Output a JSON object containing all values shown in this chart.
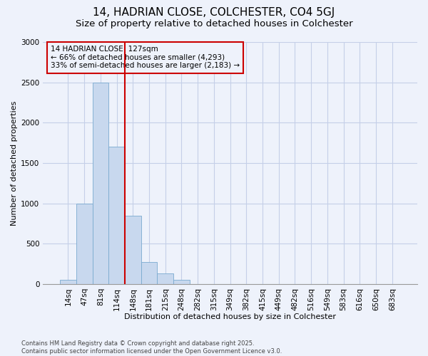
{
  "title_line1": "14, HADRIAN CLOSE, COLCHESTER, CO4 5GJ",
  "title_line2": "Size of property relative to detached houses in Colchester",
  "xlabel": "Distribution of detached houses by size in Colchester",
  "ylabel": "Number of detached properties",
  "categories": [
    "14sq",
    "47sq",
    "81sq",
    "114sq",
    "148sq",
    "181sq",
    "215sq",
    "248sq",
    "282sq",
    "315sq",
    "349sq",
    "382sq",
    "415sq",
    "449sq",
    "482sq",
    "516sq",
    "549sq",
    "583sq",
    "616sq",
    "650sq",
    "683sq"
  ],
  "values": [
    50,
    1000,
    2500,
    1700,
    850,
    270,
    130,
    50,
    0,
    0,
    0,
    0,
    0,
    0,
    0,
    0,
    0,
    0,
    0,
    0,
    0
  ],
  "bar_color": "#c8d8ee",
  "bar_edge_color": "#7aaad0",
  "vline_x": 3.5,
  "vline_color": "#cc0000",
  "annotation_text": "14 HADRIAN CLOSE: 127sqm\n← 66% of detached houses are smaller (4,293)\n33% of semi-detached houses are larger (2,183) →",
  "annotation_box_color": "#cc0000",
  "ylim": [
    0,
    3000
  ],
  "yticks": [
    0,
    500,
    1000,
    1500,
    2000,
    2500,
    3000
  ],
  "background_color": "#eef2fb",
  "grid_color": "#c5cfe8",
  "footer_text": "Contains HM Land Registry data © Crown copyright and database right 2025.\nContains public sector information licensed under the Open Government Licence v3.0.",
  "title_fontsize": 11,
  "subtitle_fontsize": 9.5,
  "axis_label_fontsize": 8,
  "tick_fontsize": 7.5,
  "annotation_fontsize": 7.5,
  "fig_width": 6.0,
  "fig_height": 5.0
}
